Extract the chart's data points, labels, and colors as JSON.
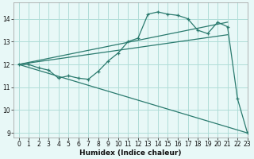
{
  "xlabel": "Humidex (Indice chaleur)",
  "bg_color": "#e8f8f7",
  "grid_color": "#b0ddd8",
  "line_color": "#2a7a6e",
  "xlim": [
    -0.5,
    23
  ],
  "ylim": [
    8.8,
    14.7
  ],
  "yticks": [
    9,
    10,
    11,
    12,
    13,
    14
  ],
  "xticks": [
    0,
    1,
    2,
    3,
    4,
    5,
    6,
    7,
    8,
    9,
    10,
    11,
    12,
    13,
    14,
    15,
    16,
    17,
    18,
    19,
    20,
    21,
    22,
    23
  ],
  "line1_x": [
    0,
    1,
    2,
    3,
    4,
    5,
    6,
    7,
    8,
    9,
    10,
    11,
    12,
    13,
    14,
    15,
    16,
    17,
    18,
    19,
    20,
    21,
    22,
    23
  ],
  "line1_y": [
    12.0,
    12.0,
    11.85,
    11.75,
    11.4,
    11.5,
    11.4,
    11.35,
    11.7,
    12.15,
    12.5,
    13.0,
    13.15,
    14.2,
    14.3,
    14.2,
    14.15,
    14.0,
    13.5,
    13.35,
    13.85,
    13.65,
    10.5,
    9.0
  ],
  "line2_x": [
    0,
    21
  ],
  "line2_y": [
    12.0,
    13.85
  ],
  "line3_x": [
    0,
    21
  ],
  "line3_y": [
    12.0,
    13.3
  ],
  "line4_x": [
    0,
    23
  ],
  "line4_y": [
    12.0,
    9.0
  ]
}
